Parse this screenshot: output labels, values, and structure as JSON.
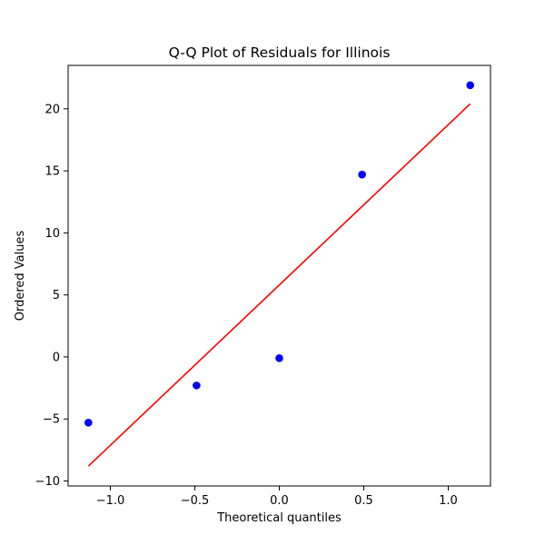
{
  "chart_data": {
    "type": "scatter",
    "title": "Q-Q Plot of Residuals for Illinois",
    "xlabel": "Theoretical quantiles",
    "ylabel": "Ordered Values",
    "xlim": [
      -1.25,
      1.25
    ],
    "ylim": [
      -10.4,
      23.5
    ],
    "x_ticks": [
      -1.0,
      -0.5,
      0.0,
      0.5,
      1.0
    ],
    "x_tick_labels": [
      "−1.0",
      "−0.5",
      "0.0",
      "0.5",
      "1.0"
    ],
    "y_ticks": [
      -10,
      -5,
      0,
      5,
      10,
      15,
      20
    ],
    "y_tick_labels": [
      "−10",
      "−5",
      "0",
      "5",
      "10",
      "15",
      "20"
    ],
    "grid": false,
    "series": [
      {
        "kind": "points",
        "color": "#0000ff",
        "x": [
          -1.13,
          -0.49,
          0.0,
          0.49,
          1.13
        ],
        "y": [
          -5.3,
          -2.3,
          -0.1,
          14.7,
          21.9
        ]
      },
      {
        "kind": "line",
        "color": "#ff0000",
        "x": [
          -1.13,
          1.13
        ],
        "y": [
          -8.8,
          20.4
        ]
      }
    ]
  }
}
